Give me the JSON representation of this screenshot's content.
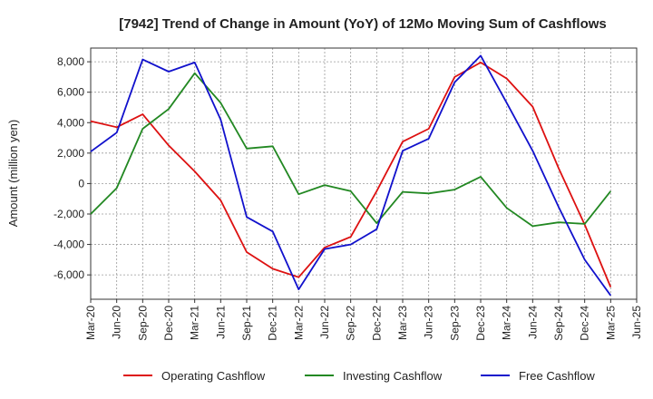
{
  "chart_data": {
    "type": "line",
    "title": "[7942]  Trend of Change in Amount (YoY) of 12Mo Moving Sum of Cashflows",
    "xlabel": "",
    "ylabel": "Amount (million yen)",
    "categories": [
      "Mar-20",
      "Jun-20",
      "Sep-20",
      "Dec-20",
      "Mar-21",
      "Jun-21",
      "Sep-21",
      "Dec-21",
      "Mar-22",
      "Jun-22",
      "Sep-22",
      "Dec-22",
      "Mar-23",
      "Jun-23",
      "Sep-23",
      "Dec-23",
      "Mar-24",
      "Jun-24",
      "Sep-24",
      "Dec-24",
      "Mar-25",
      "Jun-25"
    ],
    "yticks": [
      -6000,
      -4000,
      -2000,
      0,
      2000,
      4000,
      6000,
      8000
    ],
    "ytick_labels": [
      "-6,000",
      "-4,000",
      "-2,000",
      "0",
      "2,000",
      "4,000",
      "6,000",
      "8,000"
    ],
    "ylim": [
      -7600,
      8900
    ],
    "grid": true,
    "legend_position": "bottom",
    "series": [
      {
        "name": "Operating Cashflow",
        "color": "#dd1111",
        "values": [
          4100,
          3700,
          4550,
          2500,
          800,
          -1100,
          -4500,
          -5600,
          -6150,
          -4200,
          -3500,
          -500,
          2750,
          3600,
          7000,
          7950,
          6900,
          5050,
          1000,
          -2700,
          -6800,
          null
        ]
      },
      {
        "name": "Investing Cashflow",
        "color": "#228822",
        "values": [
          -2000,
          -300,
          3600,
          4900,
          7250,
          5300,
          2300,
          2450,
          -700,
          -100,
          -500,
          -2600,
          -550,
          -650,
          -400,
          450,
          -1600,
          -2800,
          -2550,
          -2650,
          -500,
          null
        ]
      },
      {
        "name": "Free Cashflow",
        "color": "#1111cc",
        "values": [
          2100,
          3350,
          8150,
          7350,
          7950,
          4200,
          -2200,
          -3150,
          -6950,
          -4300,
          -4000,
          -3000,
          2150,
          2950,
          6650,
          8400,
          5300,
          2150,
          -1550,
          -5000,
          -7350,
          null
        ]
      }
    ]
  }
}
